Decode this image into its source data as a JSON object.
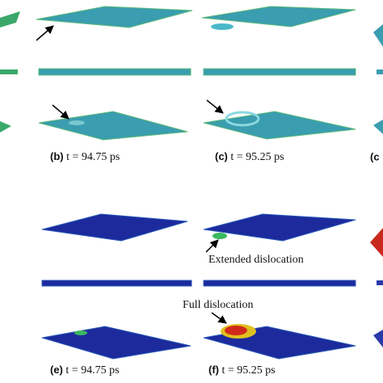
{
  "panels": [
    {
      "letter": "(b)",
      "caption": "t = 94.75 ps"
    },
    {
      "letter": "(c)",
      "caption": "t = 95.25 ps"
    },
    {
      "letter": "(e)",
      "caption": "t = 94.75 ps"
    },
    {
      "letter": "(f)",
      "caption": "t = 95.25 ps"
    }
  ],
  "cut_label": "(c",
  "annotations": {
    "extended": "Extended dislocation",
    "full": "Full dislocation"
  }
}
